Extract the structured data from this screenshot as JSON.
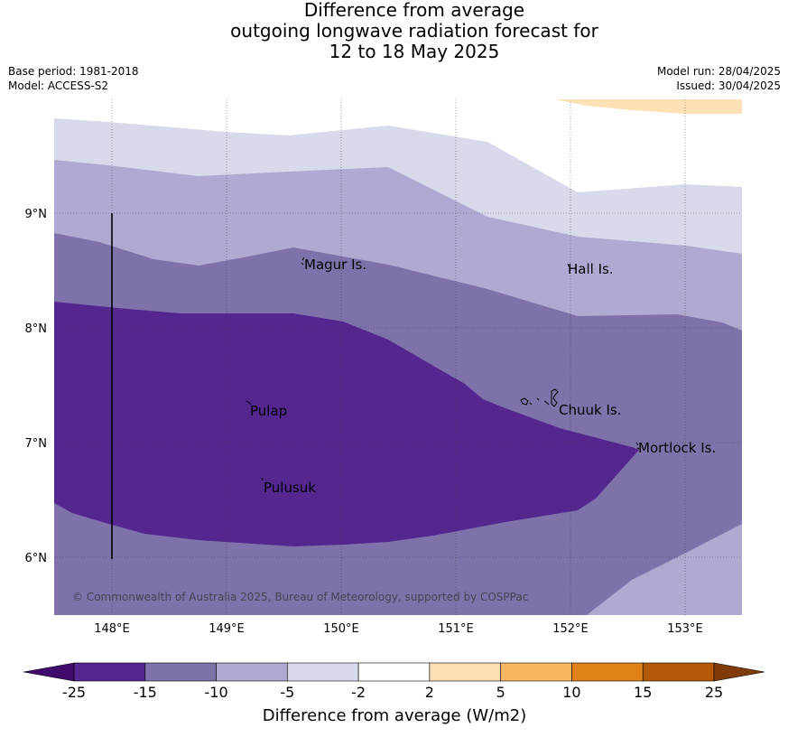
{
  "title": {
    "line1": "Difference from average",
    "line2": "outgoing longwave radiation forecast for",
    "line3": "12 to 18 May 2025"
  },
  "meta": {
    "base_period": "Base period: 1981-2018",
    "model": "Model: ACCESS-S2",
    "model_run": "Model run: 28/04/2025",
    "issued": "Issued: 30/04/2025"
  },
  "map": {
    "lat_labels": [
      "9°N",
      "8°N",
      "7°N",
      "6°N"
    ],
    "lon_labels": [
      "148°E",
      "149°E",
      "150°E",
      "151°E",
      "152°E",
      "153°E"
    ],
    "places": {
      "magur": "Magur Is.",
      "hall": "Hall Is.",
      "pulap": "Pulap",
      "chuuk": "Chuuk Is.",
      "mortlock": "Mortlock Is.",
      "pulusuk": "Pulusuk"
    },
    "copyright": "© Commonwealth of Australia 2025, Bureau of Meteorology, supported by COSPPac"
  },
  "colorbar": {
    "title": "Difference from average (W/m2)",
    "ticks": [
      "-25",
      "-15",
      "-10",
      "-5",
      "-2",
      "2",
      "5",
      "10",
      "15",
      "25"
    ],
    "colors": [
      "#3f0a6c",
      "#54278f",
      "#7f72ab",
      "#b0a9d1",
      "#d8d9ea",
      "#ffffff",
      "#fde0b4",
      "#fbb661",
      "#e08218",
      "#b35806",
      "#7f3b08"
    ]
  }
}
